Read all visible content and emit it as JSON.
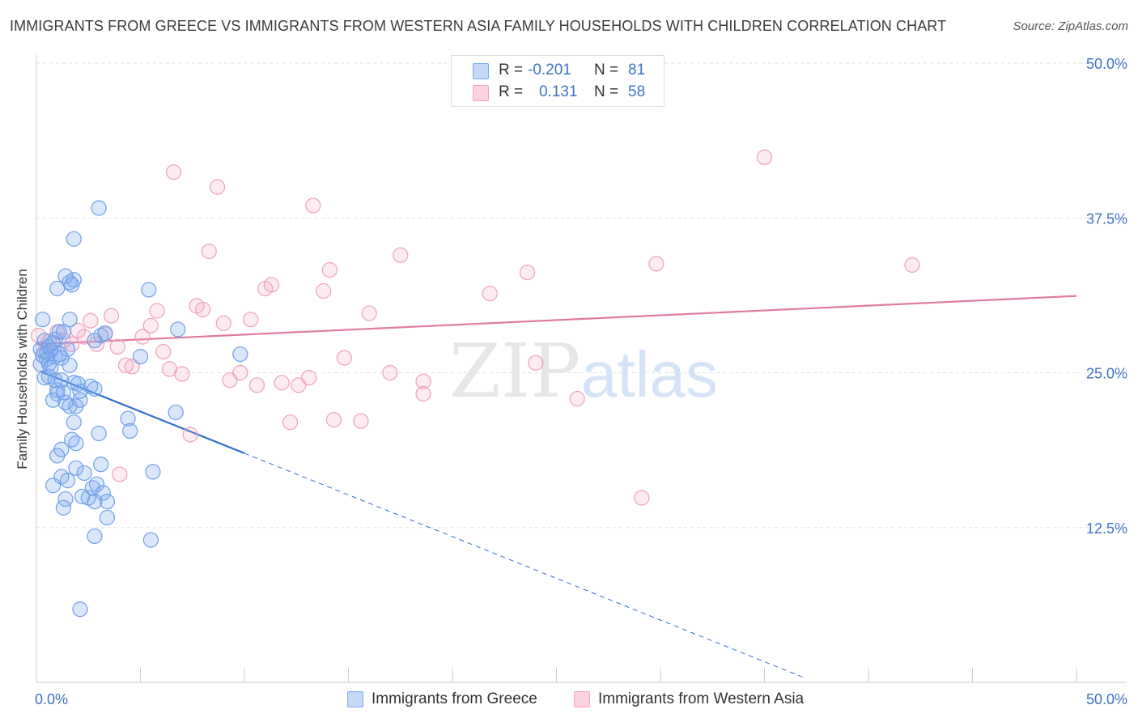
{
  "title": "IMMIGRANTS FROM GREECE VS IMMIGRANTS FROM WESTERN ASIA FAMILY HOUSEHOLDS WITH CHILDREN CORRELATION CHART",
  "source": "Source: ZipAtlas.com",
  "watermark": {
    "zip": "ZIP",
    "atlas": "atlas"
  },
  "legend": {
    "rows": [
      {
        "r_label": "R =",
        "r_value": "-0.201",
        "n_label": "N =",
        "n_value": "81"
      },
      {
        "r_label": "R =",
        "r_value": "0.131",
        "n_label": "N =",
        "n_value": "58"
      }
    ]
  },
  "chart_data": {
    "type": "scatter",
    "title": "IMMIGRANTS FROM GREECE VS IMMIGRANTS FROM WESTERN ASIA FAMILY HOUSEHOLDS WITH CHILDREN CORRELATION CHART",
    "xlabel": "",
    "ylabel": "Family Households with Children",
    "xlim": [
      0,
      50
    ],
    "ylim": [
      0,
      50
    ],
    "x_tick_labels": [
      "0.0%",
      "50.0%"
    ],
    "y_ticks": [
      12.5,
      25.0,
      37.5,
      50.0
    ],
    "y_tick_labels": [
      "12.5%",
      "25.0%",
      "37.5%",
      "50.0%"
    ],
    "grid": true,
    "legend_placement": "top-center",
    "series": [
      {
        "name": "Immigrants from Greece",
        "color": "#7aaaf0",
        "line_color": "#2f6fd0",
        "r": -0.201,
        "n": 81,
        "trend": {
          "x0": 0.2,
          "y0": 25.1,
          "x1": 10.0,
          "y1": 18.5,
          "dash_to_x": 37.0
        },
        "points": [
          [
            0.2,
            26.9
          ],
          [
            0.3,
            26.4
          ],
          [
            0.4,
            27.6
          ],
          [
            0.5,
            26.6
          ],
          [
            0.6,
            27.1
          ],
          [
            0.7,
            26.8
          ],
          [
            0.8,
            27.4
          ],
          [
            0.9,
            26.3
          ],
          [
            0.3,
            29.3
          ],
          [
            0.9,
            27.7
          ],
          [
            1.1,
            28.3
          ],
          [
            1.3,
            28.3
          ],
          [
            1.6,
            29.3
          ],
          [
            1.5,
            26.9
          ],
          [
            1.1,
            26.5
          ],
          [
            0.2,
            25.7
          ],
          [
            0.4,
            24.6
          ],
          [
            0.6,
            24.7
          ],
          [
            0.8,
            22.8
          ],
          [
            0.9,
            24.4
          ],
          [
            1.0,
            23.6
          ],
          [
            1.2,
            24.4
          ],
          [
            1.0,
            23.3
          ],
          [
            1.6,
            25.6
          ],
          [
            1.8,
            24.2
          ],
          [
            2.1,
            23.5
          ],
          [
            2.0,
            24.1
          ],
          [
            2.6,
            23.9
          ],
          [
            2.8,
            23.7
          ],
          [
            1.3,
            23.4
          ],
          [
            1.6,
            22.3
          ],
          [
            1.9,
            22.3
          ],
          [
            1.4,
            22.6
          ],
          [
            1.8,
            21.0
          ],
          [
            1.9,
            19.3
          ],
          [
            1.0,
            18.3
          ],
          [
            1.2,
            18.8
          ],
          [
            1.9,
            17.3
          ],
          [
            1.2,
            16.6
          ],
          [
            1.5,
            16.3
          ],
          [
            1.4,
            14.8
          ],
          [
            2.5,
            14.9
          ],
          [
            2.8,
            14.6
          ],
          [
            2.7,
            15.7
          ],
          [
            2.9,
            16.0
          ],
          [
            3.2,
            15.3
          ],
          [
            3.4,
            13.3
          ],
          [
            2.8,
            11.8
          ],
          [
            4.4,
            21.3
          ],
          [
            3.0,
            20.1
          ],
          [
            4.5,
            20.3
          ],
          [
            5.0,
            26.3
          ],
          [
            5.5,
            11.5
          ],
          [
            5.6,
            17.0
          ],
          [
            6.7,
            21.8
          ],
          [
            6.8,
            28.5
          ],
          [
            9.8,
            26.5
          ],
          [
            5.4,
            31.7
          ],
          [
            1.0,
            31.8
          ],
          [
            1.4,
            32.8
          ],
          [
            1.6,
            32.3
          ],
          [
            1.7,
            32.1
          ],
          [
            1.8,
            32.5
          ],
          [
            1.8,
            35.8
          ],
          [
            3.0,
            38.3
          ],
          [
            3.1,
            28.0
          ],
          [
            3.3,
            28.2
          ],
          [
            2.8,
            27.6
          ],
          [
            0.6,
            25.7
          ],
          [
            1.2,
            26.2
          ],
          [
            0.5,
            26.1
          ],
          [
            0.7,
            25.4
          ],
          [
            2.1,
            22.8
          ],
          [
            1.7,
            19.6
          ],
          [
            2.3,
            16.9
          ],
          [
            2.2,
            15.0
          ],
          [
            1.3,
            14.1
          ],
          [
            0.8,
            15.9
          ],
          [
            3.1,
            17.6
          ],
          [
            3.4,
            14.6
          ],
          [
            2.1,
            5.9
          ]
        ]
      },
      {
        "name": "Immigrants from Western Asia",
        "color": "#f3a3bf",
        "line_color": "#e07ba0",
        "r": 0.131,
        "n": 58,
        "trend": {
          "x0": 0.0,
          "y0": 27.3,
          "x1": 50.0,
          "y1": 31.2
        },
        "points": [
          [
            0.1,
            28.0
          ],
          [
            0.6,
            27.5
          ],
          [
            1.0,
            28.3
          ],
          [
            1.3,
            27.6
          ],
          [
            1.7,
            27.3
          ],
          [
            2.0,
            28.4
          ],
          [
            2.3,
            27.9
          ],
          [
            2.6,
            29.2
          ],
          [
            2.9,
            27.3
          ],
          [
            3.3,
            28.1
          ],
          [
            3.6,
            29.6
          ],
          [
            3.9,
            27.1
          ],
          [
            4.3,
            25.6
          ],
          [
            4.6,
            25.5
          ],
          [
            5.1,
            27.9
          ],
          [
            5.5,
            28.8
          ],
          [
            5.8,
            30.0
          ],
          [
            6.1,
            26.7
          ],
          [
            6.4,
            25.3
          ],
          [
            6.6,
            41.2
          ],
          [
            7.0,
            24.9
          ],
          [
            7.4,
            20.0
          ],
          [
            7.7,
            30.4
          ],
          [
            8.0,
            30.1
          ],
          [
            8.3,
            34.8
          ],
          [
            8.7,
            40.0
          ],
          [
            9.0,
            29.0
          ],
          [
            9.3,
            24.4
          ],
          [
            9.8,
            25.0
          ],
          [
            10.3,
            29.3
          ],
          [
            10.6,
            24.0
          ],
          [
            11.0,
            31.8
          ],
          [
            11.3,
            32.1
          ],
          [
            11.8,
            24.2
          ],
          [
            12.2,
            21.0
          ],
          [
            12.6,
            24.0
          ],
          [
            13.1,
            24.6
          ],
          [
            13.3,
            38.5
          ],
          [
            13.8,
            31.6
          ],
          [
            14.1,
            33.3
          ],
          [
            14.3,
            21.2
          ],
          [
            14.8,
            26.2
          ],
          [
            15.6,
            21.1
          ],
          [
            16.0,
            29.8
          ],
          [
            17.0,
            25.0
          ],
          [
            17.5,
            34.5
          ],
          [
            18.6,
            24.3
          ],
          [
            18.6,
            23.3
          ],
          [
            21.8,
            31.4
          ],
          [
            23.6,
            33.1
          ],
          [
            24.0,
            25.8
          ],
          [
            26.0,
            22.9
          ],
          [
            29.1,
            14.9
          ],
          [
            29.8,
            33.8
          ],
          [
            35.0,
            42.4
          ],
          [
            42.1,
            33.7
          ],
          [
            4.0,
            16.8
          ],
          [
            0.4,
            26.7
          ]
        ]
      }
    ]
  },
  "bottom_legend": [
    {
      "name": "Immigrants from Greece"
    },
    {
      "name": "Immigrants from Western Asia"
    }
  ],
  "colors": {
    "blue": "#7aaaf0",
    "pink": "#f3a3bf",
    "tick_text": "#3c73c8",
    "grid": "#e2e2e2"
  }
}
